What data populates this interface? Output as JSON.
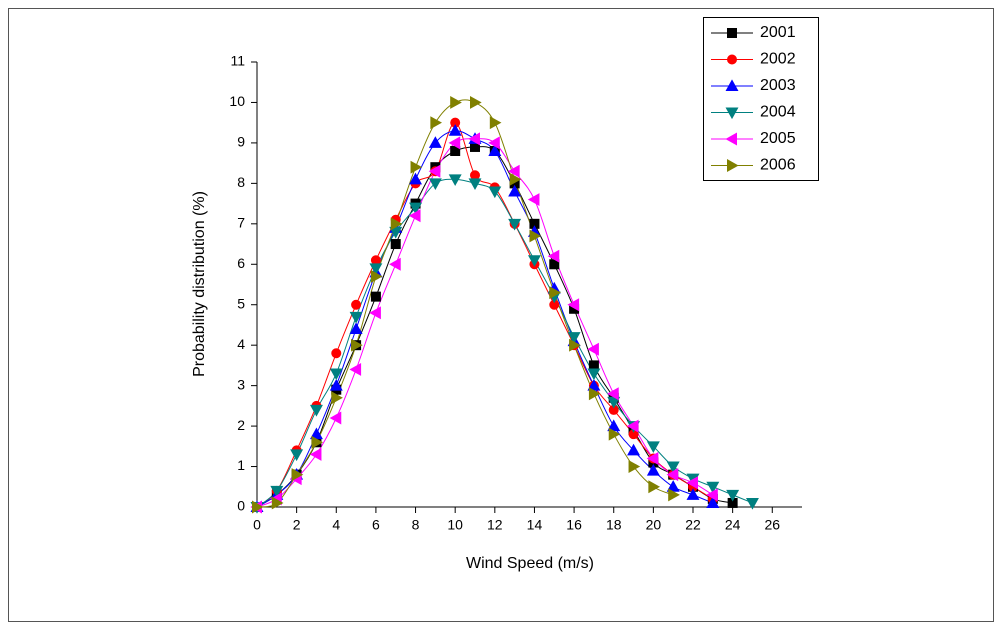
{
  "chart_data": {
    "type": "line",
    "x_label": "Wind Speed (m/s)",
    "y_label": "Probability distribution (%)",
    "xlim": [
      0,
      27.5
    ],
    "xticks": [
      0,
      2,
      4,
      6,
      8,
      10,
      12,
      14,
      16,
      18,
      20,
      22,
      24,
      26
    ],
    "ylim": [
      0,
      11
    ],
    "yticks": [
      0,
      1,
      2,
      3,
      4,
      5,
      6,
      7,
      8,
      9,
      10,
      11
    ],
    "legend": "top-right",
    "smooth": true,
    "series": [
      {
        "name": "2001",
        "color": "#000000",
        "marker": "square",
        "x": [
          0,
          1,
          2,
          3,
          4,
          5,
          6,
          7,
          8,
          9,
          10,
          11,
          12,
          13,
          14,
          15,
          16,
          17,
          18,
          19,
          20,
          21,
          22,
          23,
          24
        ],
        "values": [
          0,
          0.3,
          0.8,
          1.6,
          2.9,
          4.0,
          5.2,
          6.5,
          7.5,
          8.4,
          8.8,
          8.9,
          8.8,
          8.0,
          7.0,
          6.0,
          4.9,
          3.5,
          2.7,
          1.9,
          1.1,
          0.8,
          0.5,
          0.2,
          0.1
        ]
      },
      {
        "name": "2002",
        "color": "#ff0000",
        "marker": "circle",
        "x": [
          0,
          1,
          2,
          3,
          4,
          5,
          6,
          7,
          8,
          9,
          10,
          11,
          12,
          13,
          14,
          15,
          16,
          17,
          18,
          19,
          20,
          21,
          22,
          23
        ],
        "values": [
          0,
          0.4,
          1.4,
          2.5,
          3.8,
          5.0,
          6.1,
          7.1,
          8.0,
          8.3,
          9.5,
          8.2,
          7.9,
          7.0,
          6.0,
          5.0,
          4.0,
          3.0,
          2.4,
          1.8,
          1.2,
          0.8,
          0.5,
          0.2
        ]
      },
      {
        "name": "2003",
        "color": "#0000ff",
        "marker": "triangle-up",
        "x": [
          0,
          1,
          2,
          3,
          4,
          5,
          6,
          7,
          8,
          9,
          10,
          11,
          12,
          13,
          14,
          15,
          16,
          17,
          18,
          19,
          20,
          21,
          22,
          23
        ],
        "values": [
          0,
          0.3,
          0.8,
          1.8,
          3.0,
          4.4,
          5.8,
          6.9,
          8.1,
          9.0,
          9.3,
          9.1,
          8.8,
          7.8,
          6.8,
          5.4,
          4.1,
          3.0,
          2.0,
          1.4,
          0.9,
          0.5,
          0.3,
          0.1
        ]
      },
      {
        "name": "2004",
        "color": "#008080",
        "marker": "triangle-down",
        "x": [
          0,
          1,
          2,
          3,
          4,
          5,
          6,
          7,
          8,
          9,
          10,
          11,
          12,
          13,
          14,
          15,
          16,
          17,
          18,
          19,
          20,
          21,
          22,
          23,
          24,
          25
        ],
        "values": [
          0,
          0.4,
          1.3,
          2.4,
          3.3,
          4.7,
          5.9,
          6.8,
          7.4,
          8.0,
          8.1,
          8.0,
          7.8,
          7.0,
          6.1,
          5.2,
          4.2,
          3.3,
          2.6,
          2.0,
          1.5,
          1.0,
          0.7,
          0.5,
          0.3,
          0.1
        ]
      },
      {
        "name": "2005",
        "color": "#ff00ff",
        "marker": "triangle-left",
        "x": [
          0,
          1,
          2,
          3,
          4,
          5,
          6,
          7,
          8,
          9,
          10,
          11,
          12,
          13,
          14,
          15,
          16,
          17,
          18,
          19,
          20,
          21,
          22,
          23
        ],
        "values": [
          0,
          0.2,
          0.7,
          1.3,
          2.2,
          3.4,
          4.8,
          6.0,
          7.2,
          8.3,
          9.0,
          9.1,
          9.0,
          8.3,
          7.6,
          6.2,
          5.0,
          3.9,
          2.8,
          2.0,
          1.2,
          0.8,
          0.6,
          0.3
        ]
      },
      {
        "name": "2006",
        "color": "#808000",
        "marker": "triangle-right",
        "x": [
          0,
          1,
          2,
          3,
          4,
          5,
          6,
          7,
          8,
          9,
          10,
          11,
          12,
          13,
          14,
          15,
          16,
          17,
          18,
          19,
          20,
          21
        ],
        "values": [
          0,
          0.1,
          0.8,
          1.6,
          2.7,
          4.0,
          5.7,
          7.0,
          8.4,
          9.5,
          10.0,
          10.0,
          9.5,
          8.1,
          6.7,
          5.3,
          4.0,
          2.8,
          1.8,
          1.0,
          0.5,
          0.3
        ]
      }
    ]
  }
}
